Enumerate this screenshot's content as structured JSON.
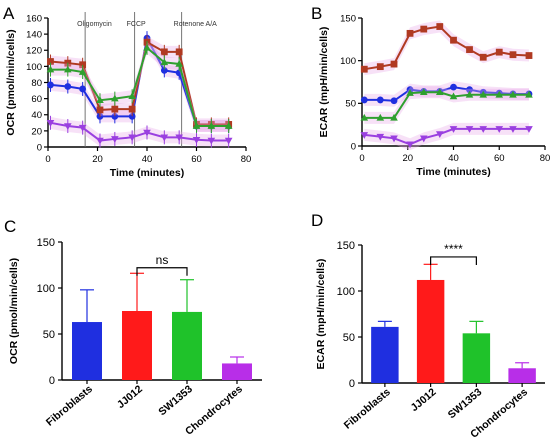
{
  "panels": {
    "a": {
      "label": "A",
      "chart_data": {
        "type": "line",
        "xlabel": "Time (minutes)",
        "ylabel": "OCR (pmol/min/cells)",
        "xlim": [
          0,
          80
        ],
        "ylim": [
          0,
          160
        ],
        "xticks": [
          0,
          20,
          40,
          60,
          80
        ],
        "yticks": [
          0,
          20,
          40,
          60,
          80,
          100,
          120,
          140,
          160
        ],
        "grid": false,
        "injections": [
          {
            "label": "Oligomycin",
            "x": 15
          },
          {
            "label": "FCCP",
            "x": 35
          },
          {
            "label": "Rotenone A/A",
            "x": 54
          }
        ],
        "x": [
          1,
          8,
          14,
          21,
          27,
          34,
          40,
          47,
          53,
          60,
          66,
          73
        ],
        "series": [
          {
            "key": "fibroblasts",
            "color": "#1f2fe0",
            "marker": "circle",
            "values": [
              77,
              75,
              72,
              38,
              38,
              38,
              135,
              95,
              92,
              26,
              26,
              26
            ]
          },
          {
            "key": "jj012",
            "color": "#b03a22",
            "marker": "square",
            "values": [
              106,
              104,
              102,
              46,
              47,
              47,
              130,
              118,
              118,
              28,
              28,
              28
            ]
          },
          {
            "key": "sw1353",
            "color": "#2fa02f",
            "marker": "triangle",
            "values": [
              96,
              96,
              93,
              58,
              60,
              63,
              123,
              105,
              103,
              26,
              26,
              26
            ]
          },
          {
            "key": "chondrocytes",
            "color": "#9a3fe0",
            "marker": "triangle-down",
            "values": [
              30,
              26,
              24,
              8,
              10,
              12,
              18,
              12,
              12,
              9,
              8,
              8
            ]
          }
        ]
      }
    },
    "b": {
      "label": "B",
      "chart_data": {
        "type": "line",
        "xlabel": "Time (minutes)",
        "ylabel": "ECAR (mpH/min/cells)",
        "xlim": [
          0,
          80
        ],
        "ylim": [
          0,
          150
        ],
        "xticks": [
          0,
          20,
          40,
          60,
          80
        ],
        "yticks": [
          0,
          50,
          100,
          150
        ],
        "grid": false,
        "x": [
          1,
          8,
          14,
          21,
          27,
          34,
          40,
          47,
          53,
          60,
          66,
          73
        ],
        "series": [
          {
            "key": "fibroblasts",
            "color": "#1f2fe0",
            "marker": "circle",
            "values": [
              54,
              54,
              53,
              66,
              64,
              64,
              69,
              66,
              63,
              62,
              61,
              61
            ]
          },
          {
            "key": "jj012",
            "color": "#b03a22",
            "marker": "square",
            "values": [
              90,
              93,
              96,
              132,
              137,
              140,
              124,
              113,
              104,
              110,
              107,
              106
            ]
          },
          {
            "key": "sw1353",
            "color": "#2fa02f",
            "marker": "triangle",
            "values": [
              33,
              33,
              33,
              62,
              63,
              63,
              58,
              60,
              60,
              60,
              60,
              60
            ]
          },
          {
            "key": "chondrocytes",
            "color": "#9a3fe0",
            "marker": "triangle-down",
            "values": [
              13,
              11,
              9,
              2,
              9,
              14,
              20,
              20,
              20,
              20,
              20,
              20
            ]
          }
        ]
      }
    },
    "c": {
      "label": "C",
      "chart_data": {
        "type": "bar",
        "ylabel": "OCR (pmol/min/cells)",
        "ylim": [
          0,
          150
        ],
        "yticks": [
          0,
          50,
          100,
          150
        ],
        "categories": [
          "Fibroblasts",
          "JJ012",
          "SW1353",
          "Chondrocytes"
        ],
        "values": [
          63,
          75,
          74,
          18
        ],
        "errors": [
          35,
          41,
          35,
          7
        ],
        "colors": [
          "#1f2fe0",
          "#ff1a1a",
          "#1fc22a",
          "#b82ee8"
        ],
        "significance": {
          "from": 1,
          "to": 2,
          "label": "ns",
          "y": 122
        }
      }
    },
    "d": {
      "label": "D",
      "chart_data": {
        "type": "bar",
        "ylabel": "ECAR (mpH/min/cells)",
        "ylim": [
          0,
          150
        ],
        "yticks": [
          0,
          50,
          100,
          150
        ],
        "categories": [
          "Fibroblasts",
          "JJ012",
          "SW1353",
          "Chondrocytes"
        ],
        "values": [
          61,
          112,
          54,
          16
        ],
        "errors": [
          6,
          17,
          13,
          6
        ],
        "colors": [
          "#1f2fe0",
          "#ff1a1a",
          "#1fc22a",
          "#b82ee8"
        ],
        "significance": {
          "from": 1,
          "to": 2,
          "label": "****",
          "y": 137
        }
      }
    }
  }
}
